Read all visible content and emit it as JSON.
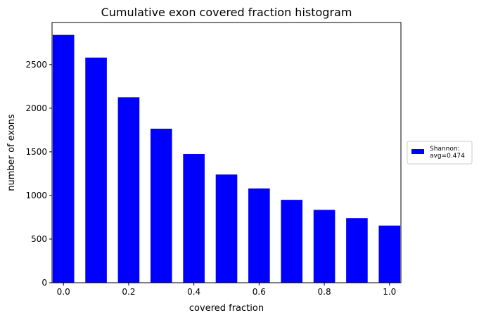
{
  "chart_data": {
    "type": "bar",
    "title": "Cumulative exon covered fraction histogram",
    "xlabel": "covered fraction",
    "ylabel": "number of exons",
    "x": [
      0.0,
      0.1,
      0.2,
      0.3,
      0.4,
      0.5,
      0.6,
      0.7,
      0.8,
      0.9,
      1.0
    ],
    "series": [
      {
        "name": "Shannon:\navg=0.474",
        "legend_lines": [
          "Shannon:",
          "avg=0.474"
        ],
        "values": [
          2840,
          2580,
          2125,
          1765,
          1475,
          1240,
          1080,
          950,
          835,
          740,
          655
        ],
        "color": "#0000ff"
      }
    ],
    "bar_width": 0.066,
    "xlim": [
      -0.035,
      1.035
    ],
    "ylim": [
      0,
      2982
    ],
    "xticks": [
      0.0,
      0.2,
      0.4,
      0.6,
      0.8,
      1.0
    ],
    "xtick_labels": [
      "0.0",
      "0.2",
      "0.4",
      "0.6",
      "0.8",
      "1.0"
    ],
    "yticks": [
      0,
      500,
      1000,
      1500,
      2000,
      2500
    ],
    "ytick_labels": [
      "0",
      "500",
      "1000",
      "1500",
      "2000",
      "2500"
    ],
    "grid": false,
    "legend_position": "outside-right"
  }
}
